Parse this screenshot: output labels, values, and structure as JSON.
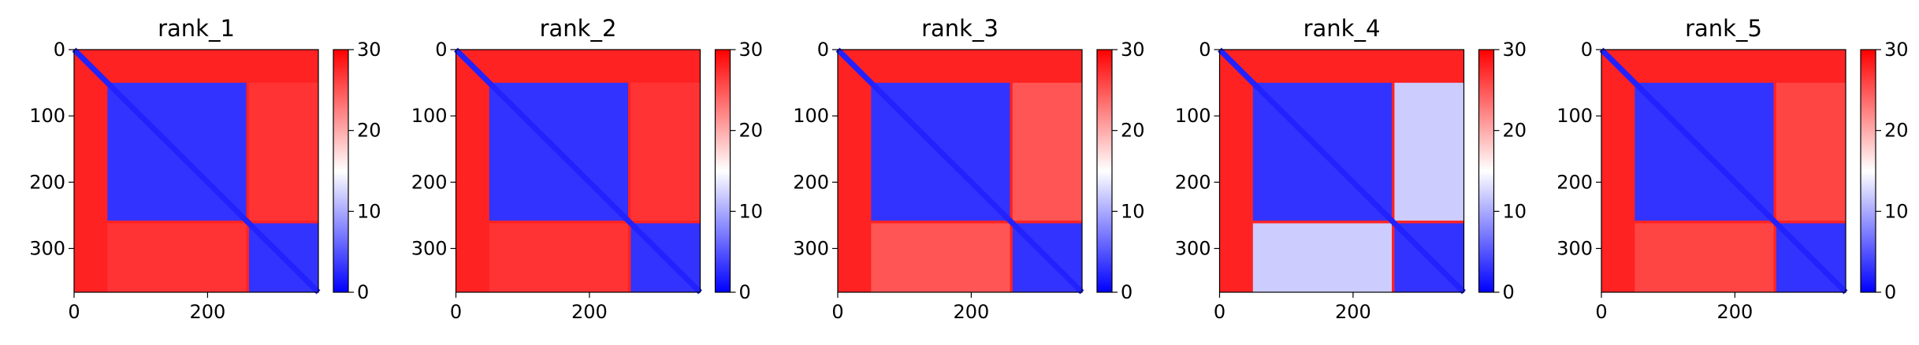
{
  "chart_data": [
    {
      "type": "heatmap",
      "title": "rank_1",
      "xlabel": "",
      "ylabel": "",
      "xlim": [
        0,
        366
      ],
      "ylim": [
        366,
        0
      ],
      "x_ticks": [
        0,
        200
      ],
      "y_ticks": [
        0,
        100,
        200,
        300
      ],
      "colorbar": {
        "min": 0,
        "max": 30,
        "ticks": [
          0,
          10,
          20,
          30
        ],
        "colors": [
          "#0000ff",
          "#ffffff",
          "#ff0000"
        ]
      },
      "blocks": [
        {
          "range": [
            50,
            258
          ],
          "value": 3
        },
        {
          "range": [
            262,
            366
          ],
          "value": 3
        }
      ],
      "cross_block_value": 27,
      "diagonal_value": 2,
      "background_value": 28
    },
    {
      "type": "heatmap",
      "title": "rank_2",
      "xlabel": "",
      "ylabel": "",
      "xlim": [
        0,
        366
      ],
      "ylim": [
        366,
        0
      ],
      "x_ticks": [
        0,
        200
      ],
      "y_ticks": [
        0,
        100,
        200,
        300
      ],
      "colorbar": {
        "min": 0,
        "max": 30,
        "ticks": [
          0,
          10,
          20,
          30
        ],
        "colors": [
          "#0000ff",
          "#ffffff",
          "#ff0000"
        ]
      },
      "blocks": [
        {
          "range": [
            50,
            258
          ],
          "value": 3
        },
        {
          "range": [
            262,
            366
          ],
          "value": 3
        }
      ],
      "cross_block_value": 27,
      "diagonal_value": 2,
      "background_value": 28
    },
    {
      "type": "heatmap",
      "title": "rank_3",
      "xlabel": "",
      "ylabel": "",
      "xlim": [
        0,
        366
      ],
      "ylim": [
        366,
        0
      ],
      "x_ticks": [
        0,
        200
      ],
      "y_ticks": [
        0,
        100,
        200,
        300
      ],
      "colorbar": {
        "min": 0,
        "max": 30,
        "ticks": [
          0,
          10,
          20,
          30
        ],
        "colors": [
          "#0000ff",
          "#ffffff",
          "#ff0000"
        ]
      },
      "blocks": [
        {
          "range": [
            50,
            258
          ],
          "value": 3
        },
        {
          "range": [
            262,
            366
          ],
          "value": 3
        }
      ],
      "cross_block_value": 25,
      "diagonal_value": 2,
      "background_value": 28
    },
    {
      "type": "heatmap",
      "title": "rank_4",
      "xlabel": "",
      "ylabel": "",
      "xlim": [
        0,
        366
      ],
      "ylim": [
        366,
        0
      ],
      "x_ticks": [
        0,
        200
      ],
      "y_ticks": [
        0,
        100,
        200,
        300
      ],
      "colorbar": {
        "min": 0,
        "max": 30,
        "ticks": [
          0,
          10,
          20,
          30
        ],
        "colors": [
          "#0000ff",
          "#ffffff",
          "#ff0000"
        ]
      },
      "blocks": [
        {
          "range": [
            50,
            258
          ],
          "value": 3
        },
        {
          "range": [
            262,
            366
          ],
          "value": 3
        }
      ],
      "cross_block_value": 12,
      "diagonal_value": 2,
      "background_value": 28
    },
    {
      "type": "heatmap",
      "title": "rank_5",
      "xlabel": "",
      "ylabel": "",
      "xlim": [
        0,
        366
      ],
      "ylim": [
        366,
        0
      ],
      "x_ticks": [
        0,
        200
      ],
      "y_ticks": [
        0,
        100,
        200,
        300
      ],
      "colorbar": {
        "min": 0,
        "max": 30,
        "ticks": [
          0,
          10,
          20,
          30
        ],
        "colors": [
          "#0000ff",
          "#ffffff",
          "#ff0000"
        ]
      },
      "blocks": [
        {
          "range": [
            50,
            258
          ],
          "value": 3
        },
        {
          "range": [
            262,
            366
          ],
          "value": 3
        }
      ],
      "cross_block_value": 26,
      "diagonal_value": 2,
      "background_value": 28
    }
  ]
}
